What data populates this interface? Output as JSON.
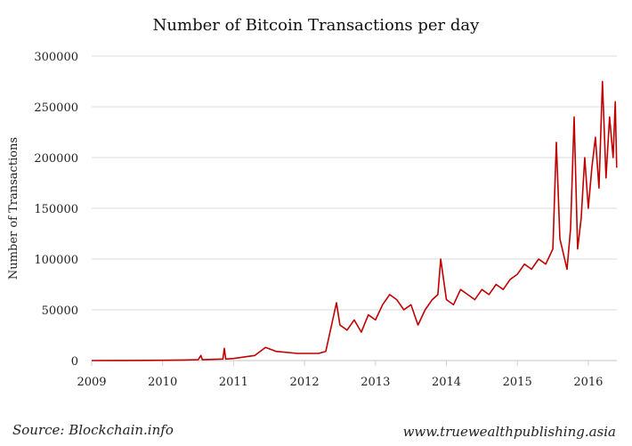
{
  "chart_data": {
    "type": "line",
    "title": "Number of Bitcoin Transactions per day",
    "xlabel": "",
    "ylabel": "Number of Transactions",
    "xlim": [
      2009,
      2016.4
    ],
    "ylim": [
      0,
      300000
    ],
    "x_ticks": [
      "2009",
      "2010",
      "2011",
      "2012",
      "2013",
      "2014",
      "2015",
      "2016"
    ],
    "y_ticks": [
      "0",
      "50000",
      "100000",
      "150000",
      "200000",
      "250000",
      "300000"
    ],
    "grid": "horizontal",
    "line_color": "#c00000",
    "points": [
      [
        2009.0,
        0
      ],
      [
        2009.5,
        100
      ],
      [
        2010.0,
        300
      ],
      [
        2010.3,
        500
      ],
      [
        2010.5,
        800
      ],
      [
        2010.54,
        5000
      ],
      [
        2010.56,
        800
      ],
      [
        2010.85,
        1500
      ],
      [
        2010.87,
        12000
      ],
      [
        2010.89,
        1500
      ],
      [
        2011.0,
        2000
      ],
      [
        2011.3,
        5000
      ],
      [
        2011.45,
        13000
      ],
      [
        2011.6,
        9000
      ],
      [
        2011.9,
        7000
      ],
      [
        2012.2,
        7000
      ],
      [
        2012.3,
        9000
      ],
      [
        2012.35,
        25000
      ],
      [
        2012.45,
        57000
      ],
      [
        2012.5,
        35000
      ],
      [
        2012.6,
        30000
      ],
      [
        2012.7,
        40000
      ],
      [
        2012.8,
        28000
      ],
      [
        2012.9,
        45000
      ],
      [
        2013.0,
        40000
      ],
      [
        2013.1,
        55000
      ],
      [
        2013.2,
        65000
      ],
      [
        2013.3,
        60000
      ],
      [
        2013.4,
        50000
      ],
      [
        2013.5,
        55000
      ],
      [
        2013.6,
        35000
      ],
      [
        2013.7,
        50000
      ],
      [
        2013.8,
        60000
      ],
      [
        2013.88,
        65000
      ],
      [
        2013.92,
        100000
      ],
      [
        2014.0,
        60000
      ],
      [
        2014.1,
        55000
      ],
      [
        2014.2,
        70000
      ],
      [
        2014.3,
        65000
      ],
      [
        2014.4,
        60000
      ],
      [
        2014.5,
        70000
      ],
      [
        2014.6,
        65000
      ],
      [
        2014.7,
        75000
      ],
      [
        2014.8,
        70000
      ],
      [
        2014.9,
        80000
      ],
      [
        2015.0,
        85000
      ],
      [
        2015.1,
        95000
      ],
      [
        2015.2,
        90000
      ],
      [
        2015.3,
        100000
      ],
      [
        2015.4,
        95000
      ],
      [
        2015.5,
        110000
      ],
      [
        2015.55,
        215000
      ],
      [
        2015.6,
        120000
      ],
      [
        2015.7,
        90000
      ],
      [
        2015.75,
        130000
      ],
      [
        2015.8,
        240000
      ],
      [
        2015.85,
        110000
      ],
      [
        2015.9,
        140000
      ],
      [
        2015.95,
        200000
      ],
      [
        2016.0,
        150000
      ],
      [
        2016.05,
        190000
      ],
      [
        2016.1,
        220000
      ],
      [
        2016.15,
        170000
      ],
      [
        2016.2,
        275000
      ],
      [
        2016.25,
        180000
      ],
      [
        2016.3,
        240000
      ],
      [
        2016.35,
        200000
      ],
      [
        2016.38,
        255000
      ],
      [
        2016.4,
        190000
      ]
    ]
  },
  "footer": {
    "source": "Source: Blockchain.info",
    "website": "www.truewealthpublishing.asia"
  }
}
